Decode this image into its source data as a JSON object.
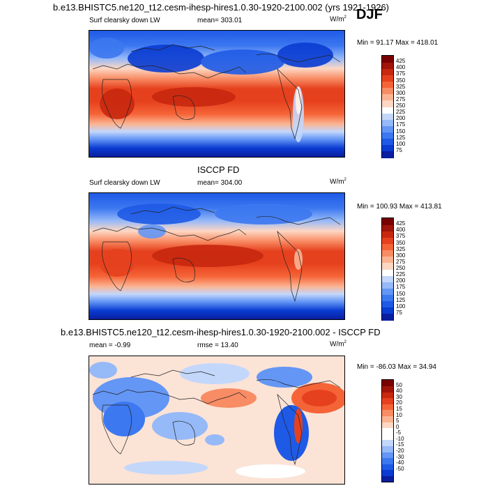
{
  "title": "b.e13.BHISTC5.ne120_t12.cesm-ihesp-hires1.0.30-1920-2100.002 (yrs 1921-1926)",
  "season": "DJF",
  "colors": {
    "abs_palette": [
      "#000070",
      "#0a1ea0",
      "#0a3cd2",
      "#1e5ae6",
      "#3c78f0",
      "#6496f5",
      "#96b9f8",
      "#c3d7fb",
      "#ffffff",
      "#fdd7c3",
      "#fbb493",
      "#f88c64",
      "#f56437",
      "#e6411e",
      "#c8280f",
      "#a0140a",
      "#780000"
    ],
    "diff_palette": [
      "#000070",
      "#0a1ea0",
      "#0a3cd2",
      "#1e5ae6",
      "#3c78f0",
      "#6496f5",
      "#96b9f8",
      "#c3d7fb",
      "#ffffff",
      "#ffffff",
      "#fdd7c3",
      "#fbb493",
      "#f88c64",
      "#f56437",
      "#e6411e",
      "#c8280f",
      "#a0140a",
      "#780000"
    ]
  },
  "panels": [
    {
      "subtitle": "Surf clearsky down LW",
      "mean": "mean= 303.01",
      "rmse": "",
      "units": "W/m",
      "units_sup": "2",
      "minmax": "Min =  91.17 Max = 418.01",
      "levels": [
        "425",
        "400",
        "375",
        "350",
        "325",
        "300",
        "275",
        "250",
        "225",
        "200",
        "175",
        "150",
        "125",
        "100",
        "75"
      ]
    },
    {
      "center_title": "ISCCP FD",
      "subtitle": "Surf clearsky down LW",
      "mean": "mean= 304.00",
      "rmse": "",
      "units": "W/m",
      "units_sup": "2",
      "minmax": "Min = 100.93 Max = 413.81",
      "levels": [
        "425",
        "400",
        "375",
        "350",
        "325",
        "300",
        "275",
        "250",
        "225",
        "200",
        "175",
        "150",
        "125",
        "100",
        "75"
      ]
    },
    {
      "center_title": "b.e13.BHISTC5.ne120_t12.cesm-ihesp-hires1.0.30-1920-2100.002 - ISCCP FD",
      "subtitle": "",
      "mean": "mean =  -0.99",
      "rmse": "rmse =  13.40",
      "units": "W/m",
      "units_sup": "2",
      "minmax": "Min = -86.03 Max =  34.94",
      "levels": [
        "50",
        "40",
        "30",
        "20",
        "15",
        "10",
        "5",
        "0",
        "-5",
        "-10",
        "-15",
        "-20",
        "-30",
        "-40",
        "-50"
      ]
    }
  ]
}
